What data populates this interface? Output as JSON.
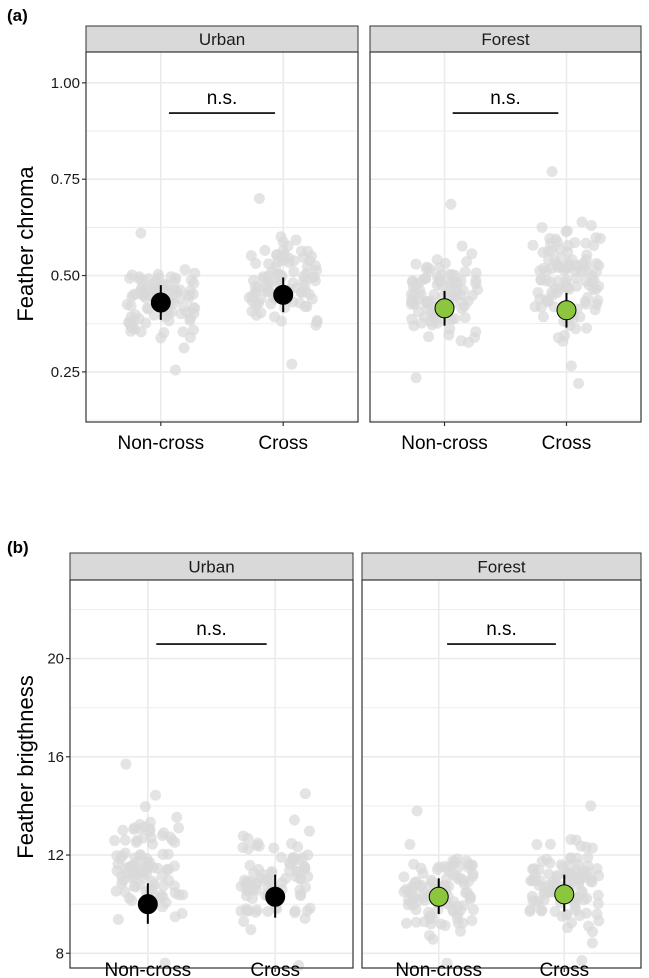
{
  "figure": {
    "panel_a_label": "(a)",
    "panel_b_label": "(b)"
  },
  "colors": {
    "urban_mean": "#000000",
    "forest_mean": "#8cc63f",
    "raw_points": "#d9d9d9",
    "strip_fill": "#d9d9d9",
    "grid": "#ebebeb"
  },
  "chart_data": [
    {
      "type": "scatter",
      "panel": "(a)",
      "ylabel": "Feather chroma",
      "ylim": [
        0.12,
        1.08
      ],
      "yticks": [
        0.25,
        0.5,
        0.75,
        1.0
      ],
      "ytick_labels": [
        "0.25",
        "0.50",
        "0.75",
        "1.00"
      ],
      "categories": [
        "Non-cross",
        "Cross"
      ],
      "grid": true,
      "facets": [
        {
          "name": "Urban",
          "significance": "n.s.",
          "mean_color": "#000000",
          "groups": [
            {
              "category": "Non-cross",
              "mean": 0.43,
              "lower": 0.385,
              "upper": 0.475,
              "n_points": 95,
              "raw_min": 0.255,
              "raw_max": 0.61
            },
            {
              "category": "Cross",
              "mean": 0.45,
              "lower": 0.405,
              "upper": 0.495,
              "n_points": 90,
              "raw_min": 0.27,
              "raw_max": 0.7
            }
          ]
        },
        {
          "name": "Forest",
          "significance": "n.s.",
          "mean_color": "#8cc63f",
          "groups": [
            {
              "category": "Non-cross",
              "mean": 0.415,
              "lower": 0.37,
              "upper": 0.46,
              "n_points": 100,
              "raw_min": 0.235,
              "raw_max": 0.685
            },
            {
              "category": "Cross",
              "mean": 0.41,
              "lower": 0.365,
              "upper": 0.455,
              "n_points": 105,
              "raw_min": 0.22,
              "raw_max": 0.77
            }
          ]
        }
      ]
    },
    {
      "type": "scatter",
      "panel": "(b)",
      "ylabel": "Feather brigthness",
      "ylim": [
        7.4,
        23.2
      ],
      "yticks": [
        8,
        12,
        16,
        20
      ],
      "ytick_labels": [
        "8",
        "12",
        "16",
        "20"
      ],
      "categories": [
        "Non-cross",
        "Cross"
      ],
      "grid": true,
      "facets": [
        {
          "name": "Urban",
          "significance": "n.s.",
          "mean_color": "#000000",
          "groups": [
            {
              "category": "Non-cross",
              "mean": 10.0,
              "lower": 9.2,
              "upper": 10.85,
              "n_points": 95,
              "raw_min": 7.6,
              "raw_max": 15.7
            },
            {
              "category": "Cross",
              "mean": 10.3,
              "lower": 9.45,
              "upper": 11.2,
              "n_points": 90,
              "raw_min": 7.5,
              "raw_max": 14.5
            }
          ]
        },
        {
          "name": "Forest",
          "significance": "n.s.",
          "mean_color": "#8cc63f",
          "groups": [
            {
              "category": "Non-cross",
              "mean": 10.3,
              "lower": 9.6,
              "upper": 11.05,
              "n_points": 105,
              "raw_min": 7.6,
              "raw_max": 13.8
            },
            {
              "category": "Cross",
              "mean": 10.4,
              "lower": 9.7,
              "upper": 11.2,
              "n_points": 110,
              "raw_min": 7.7,
              "raw_max": 14.0
            }
          ]
        }
      ]
    }
  ]
}
